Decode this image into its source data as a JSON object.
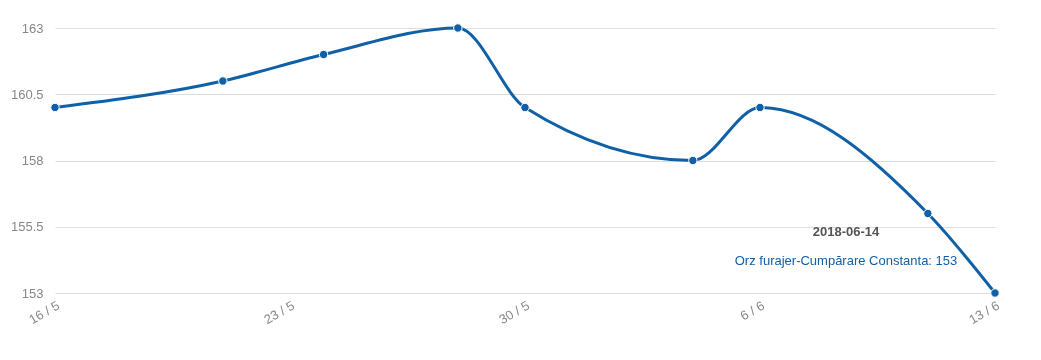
{
  "chart_data": {
    "type": "line",
    "x": [
      "2018-05-17",
      "2018-05-22",
      "2018-05-25",
      "2018-05-29",
      "2018-05-31",
      "2018-06-05",
      "2018-06-07",
      "2018-06-12",
      "2018-06-14"
    ],
    "series": [
      {
        "color": "#1060a8",
        "values": [
          160,
          161,
          162,
          163,
          160,
          158,
          160,
          156,
          153
        ]
      }
    ],
    "ylim": [
      153,
      163
    ],
    "yticks": [
      153,
      155.5,
      158,
      160.5,
      163
    ],
    "xlim": [
      "2018-05-17",
      "2018-06-14"
    ],
    "xticks": [
      {
        "value": "2018-05-17",
        "label": "16 / 5"
      },
      {
        "value": "2018-05-24",
        "label": "23 / 5"
      },
      {
        "value": "2018-05-31",
        "label": "30 / 5"
      },
      {
        "value": "2018-06-07",
        "label": "6 / 6"
      },
      {
        "value": "2018-06-14",
        "label": "13 / 6"
      }
    ],
    "grid": "y",
    "marker": "circle",
    "line_style": "solid",
    "annotations": [
      "2018-06-14",
      "Orz furajer-Cumpărare Constanta: 153"
    ]
  }
}
